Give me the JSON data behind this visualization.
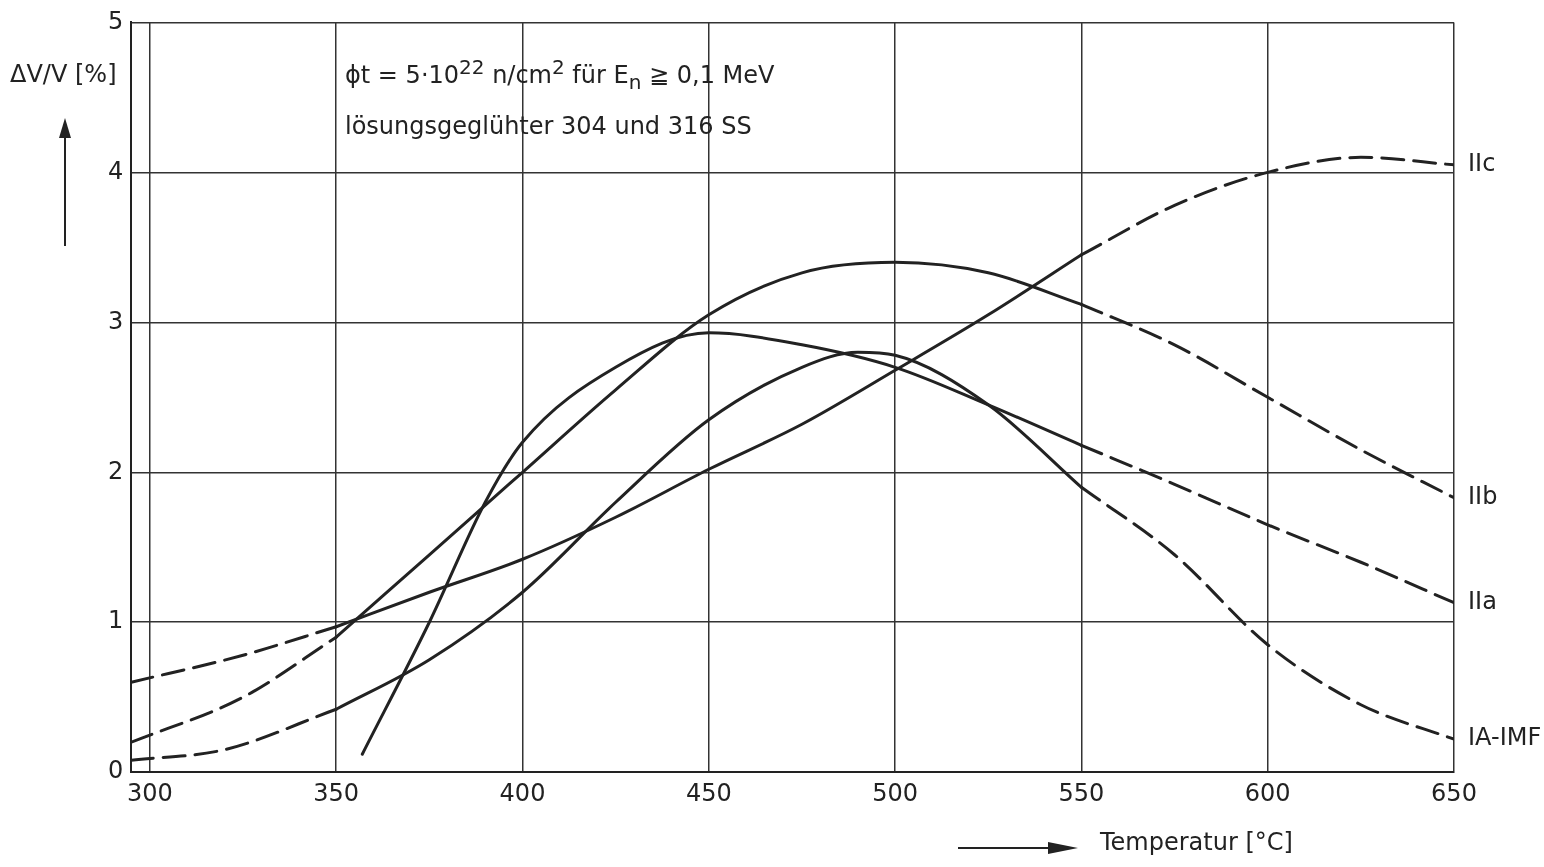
{
  "chart_data": {
    "type": "line",
    "xlabel": "Temperatur [°C]",
    "ylabel": "ΔV/V [%]",
    "annotations": [
      "ϕt = 5·10$^{22}$ n/cm$^{2}$ für E$_{n}$ ≧ 0,1 MeV",
      "lösungsgeglühter  304 und 316 SS"
    ],
    "xlim": [
      295,
      650
    ],
    "xticks": [
      300,
      350,
      400,
      450,
      500,
      550,
      600,
      650
    ],
    "ylim": [
      0,
      5
    ],
    "yticks": [
      0,
      1,
      2,
      3,
      4,
      5
    ],
    "grid": true,
    "legend": false,
    "marker": "none",
    "series": [
      {
        "color": "#222222",
        "line_style": "solid",
        "x": [
          350,
          375,
          400,
          425,
          450,
          475,
          500,
          525,
          550
        ],
        "values": [
          0.97,
          1.2,
          1.42,
          1.7,
          2.02,
          2.32,
          2.68,
          3.05,
          3.45
        ]
      },
      {
        "color": "#222222",
        "line_style": "dashed",
        "x": [
          295,
          325,
          350
        ],
        "values": [
          0.6,
          0.78,
          0.97
        ]
      },
      {
        "name": "IIc",
        "color": "#222222",
        "line_style": "dashed",
        "x": [
          550,
          575,
          600,
          625,
          650
        ],
        "values": [
          3.45,
          3.78,
          4.0,
          4.1,
          4.05
        ]
      },
      {
        "color": "#222222",
        "line_style": "solid",
        "x": [
          350,
          375,
          400,
          425,
          450,
          475,
          500,
          525,
          550
        ],
        "values": [
          0.9,
          1.45,
          2.0,
          2.55,
          3.05,
          3.33,
          3.4,
          3.33,
          3.12
        ]
      },
      {
        "color": "#222222",
        "line_style": "dashed",
        "x": [
          295,
          325,
          350
        ],
        "values": [
          0.2,
          0.5,
          0.9
        ]
      },
      {
        "name": "IIb",
        "color": "#222222",
        "line_style": "dashed",
        "x": [
          550,
          575,
          600,
          625,
          650
        ],
        "values": [
          3.12,
          2.85,
          2.5,
          2.15,
          1.83
        ]
      },
      {
        "color": "#222222",
        "line_style": "solid",
        "x": [
          357,
          375,
          390,
          400,
          425,
          450,
          475,
          500,
          525,
          550
        ],
        "values": [
          0.12,
          1.0,
          1.8,
          2.2,
          2.7,
          2.93,
          2.85,
          2.7,
          2.45,
          2.18
        ]
      },
      {
        "name": "IIa",
        "color": "#222222",
        "line_style": "dashed",
        "x": [
          550,
          575,
          600,
          625,
          650
        ],
        "values": [
          2.18,
          1.92,
          1.65,
          1.4,
          1.13
        ]
      },
      {
        "color": "#222222",
        "line_style": "solid",
        "x": [
          350,
          375,
          400,
          425,
          450,
          475,
          490,
          500,
          525,
          550
        ],
        "values": [
          0.42,
          0.75,
          1.2,
          1.8,
          2.35,
          2.7,
          2.8,
          2.78,
          2.45,
          1.9
        ]
      },
      {
        "color": "#222222",
        "line_style": "dashed",
        "x": [
          295,
          320,
          350
        ],
        "values": [
          0.08,
          0.15,
          0.42
        ]
      },
      {
        "name": "IA-IMF",
        "color": "#222222",
        "line_style": "dashed",
        "x": [
          550,
          575,
          600,
          625,
          650
        ],
        "values": [
          1.9,
          1.45,
          0.85,
          0.45,
          0.22
        ]
      }
    ]
  }
}
